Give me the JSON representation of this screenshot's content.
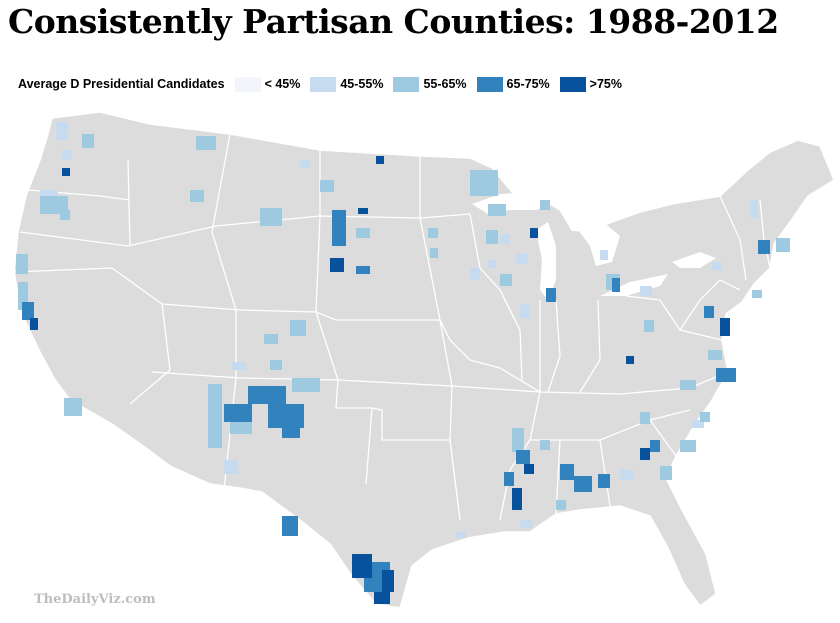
{
  "title": "Consistently Partisan Counties: 1988-2012",
  "legend": {
    "label": "Average D Presidential Candidates",
    "items": [
      {
        "label": "< 45%",
        "color": "#f2f6fc"
      },
      {
        "label": "45-55%",
        "color": "#c6dbef"
      },
      {
        "label": "55-65%",
        "color": "#9ecae1"
      },
      {
        "label": "65-75%",
        "color": "#3182bd"
      },
      {
        "label": ">75%",
        "color": "#08519c"
      }
    ]
  },
  "base_color": "#dcdcdc",
  "credit": "TheDailyViz.com"
}
